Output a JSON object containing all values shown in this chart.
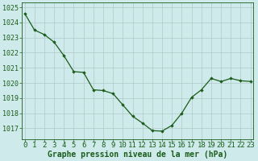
{
  "x": [
    0,
    1,
    2,
    3,
    4,
    5,
    6,
    7,
    8,
    9,
    10,
    11,
    12,
    13,
    14,
    15,
    16,
    17,
    18,
    19,
    20,
    21,
    22,
    23
  ],
  "y": [
    1024.6,
    1023.5,
    1023.2,
    1022.7,
    1021.8,
    1020.75,
    1020.7,
    1019.55,
    1019.5,
    1019.3,
    1018.55,
    1017.8,
    1017.35,
    1016.85,
    1016.82,
    1017.2,
    1018.0,
    1019.05,
    1019.55,
    1020.3,
    1020.1,
    1020.3,
    1020.15,
    1020.1
  ],
  "line_color": "#1a5c1a",
  "marker": "D",
  "marker_size": 1.8,
  "bg_color": "#ceeaea",
  "grid_color": "#b0c8c8",
  "ylabel_ticks": [
    1017,
    1018,
    1019,
    1020,
    1021,
    1022,
    1023,
    1024,
    1025
  ],
  "ylim": [
    1016.3,
    1025.3
  ],
  "xlim": [
    -0.3,
    23.3
  ],
  "xlabel": "Graphe pression niveau de la mer (hPa)",
  "xlabel_color": "#1a5c1a",
  "tick_color": "#1a5c1a",
  "tick_label_color": "#1a5c1a",
  "label_fontsize": 6.5,
  "xlabel_fontsize": 7.0,
  "ytick_fontsize": 6.0
}
